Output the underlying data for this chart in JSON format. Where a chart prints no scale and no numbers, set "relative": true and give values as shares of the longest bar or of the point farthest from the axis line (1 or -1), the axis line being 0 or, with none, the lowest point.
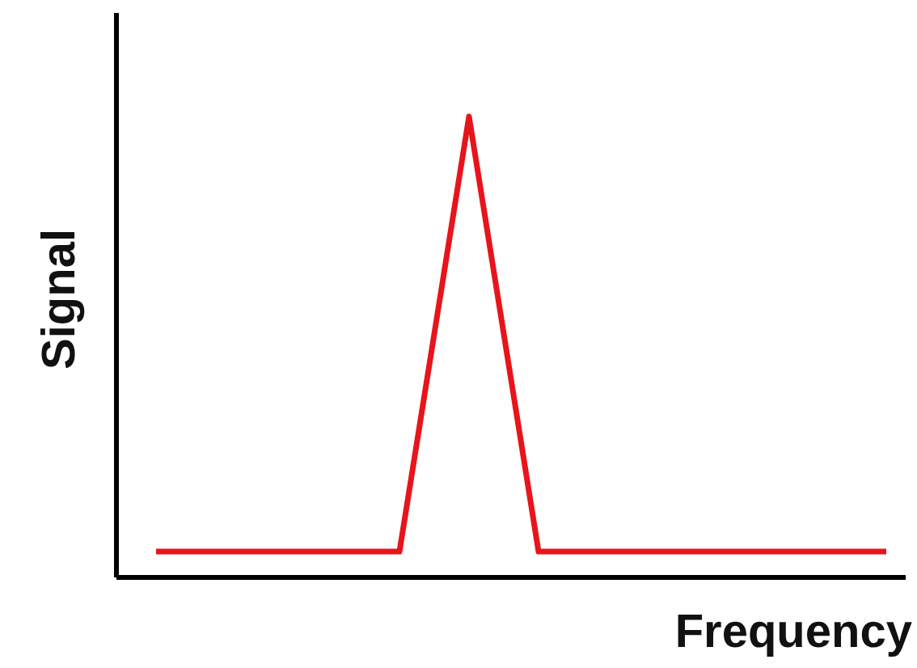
{
  "chart_data": {
    "type": "line",
    "relative": true,
    "xlabel": "Frequency",
    "ylabel": "Signal",
    "categories": [
      null,
      null,
      null,
      null,
      null,
      null,
      null,
      null,
      null,
      null,
      null,
      null,
      null,
      null,
      null,
      null,
      null,
      null,
      null,
      null,
      null,
      null
    ],
    "series": [
      {
        "color": "#e8141c",
        "values": [
          0.056,
          0.056,
          0.056,
          0.056,
          0.056,
          0.056,
          0.056,
          0.056,
          0.528,
          1,
          0.528,
          0.056,
          0.056,
          0.056,
          0.056,
          0.056,
          0.056,
          0.056,
          0.056,
          0.056,
          0.056,
          0.056
        ]
      }
    ],
    "marker": "none",
    "line_style": "solid"
  }
}
